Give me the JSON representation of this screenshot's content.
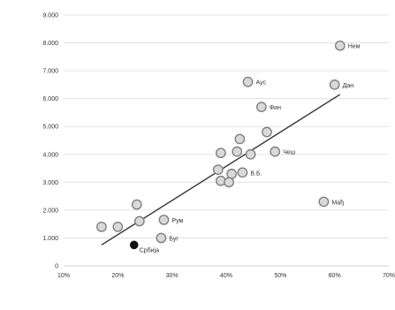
{
  "chart_data": {
    "type": "scatter",
    "title": "",
    "xlabel": "",
    "ylabel": "",
    "xlim": [
      0.1,
      0.7
    ],
    "ylim": [
      0,
      9000
    ],
    "x_ticks": [
      0.1,
      0.2,
      0.3,
      0.4,
      0.5,
      0.6,
      0.7
    ],
    "x_tick_labels": [
      "10%",
      "20%",
      "30%",
      "40%",
      "50%",
      "60%",
      "70%"
    ],
    "y_ticks": [
      0,
      1000,
      2000,
      3000,
      4000,
      5000,
      6000,
      7000,
      8000,
      9000
    ],
    "y_tick_labels": [
      "0",
      "1.000",
      "2.000",
      "3.000",
      "4.000",
      "5.000",
      "6.000",
      "7.000",
      "8.000",
      "9.000"
    ],
    "grid": {
      "horizontal": true,
      "vertical": false
    },
    "marker_color": "#d9d9d9",
    "marker_edge_color": "#7a7a7a",
    "highlight_color": "#111111",
    "trendline_color": "#333333",
    "trendline": {
      "x": [
        0.17,
        0.61
      ],
      "y": [
        750,
        6150
      ]
    },
    "points": [
      {
        "x": 0.61,
        "y": 7900,
        "label": "Нем",
        "highlight": false
      },
      {
        "x": 0.6,
        "y": 6500,
        "label": "Дан",
        "highlight": false
      },
      {
        "x": 0.44,
        "y": 6600,
        "label": "Ауc",
        "highlight": false
      },
      {
        "x": 0.465,
        "y": 5700,
        "label": "Фин",
        "highlight": false
      },
      {
        "x": 0.475,
        "y": 4800,
        "label": "",
        "highlight": false
      },
      {
        "x": 0.425,
        "y": 4550,
        "label": "",
        "highlight": false
      },
      {
        "x": 0.49,
        "y": 4100,
        "label": "Чеш",
        "highlight": false
      },
      {
        "x": 0.42,
        "y": 4100,
        "label": "",
        "highlight": false
      },
      {
        "x": 0.445,
        "y": 4000,
        "label": "",
        "highlight": false
      },
      {
        "x": 0.39,
        "y": 4050,
        "label": "",
        "highlight": false
      },
      {
        "x": 0.385,
        "y": 3450,
        "label": "",
        "highlight": false
      },
      {
        "x": 0.41,
        "y": 3300,
        "label": "",
        "highlight": false
      },
      {
        "x": 0.43,
        "y": 3350,
        "label": "В.Б.",
        "highlight": false
      },
      {
        "x": 0.39,
        "y": 3050,
        "label": "",
        "highlight": false
      },
      {
        "x": 0.405,
        "y": 3000,
        "label": "",
        "highlight": false
      },
      {
        "x": 0.58,
        "y": 2300,
        "label": "Мађ",
        "highlight": false
      },
      {
        "x": 0.235,
        "y": 2200,
        "label": "",
        "highlight": false
      },
      {
        "x": 0.285,
        "y": 1650,
        "label": "Рум",
        "highlight": false
      },
      {
        "x": 0.24,
        "y": 1600,
        "label": "",
        "highlight": false
      },
      {
        "x": 0.17,
        "y": 1400,
        "label": "",
        "highlight": false
      },
      {
        "x": 0.2,
        "y": 1400,
        "label": "",
        "highlight": false
      },
      {
        "x": 0.28,
        "y": 1000,
        "label": "Буг",
        "highlight": false
      },
      {
        "x": 0.23,
        "y": 750,
        "label": "Србија",
        "highlight": true
      }
    ]
  }
}
